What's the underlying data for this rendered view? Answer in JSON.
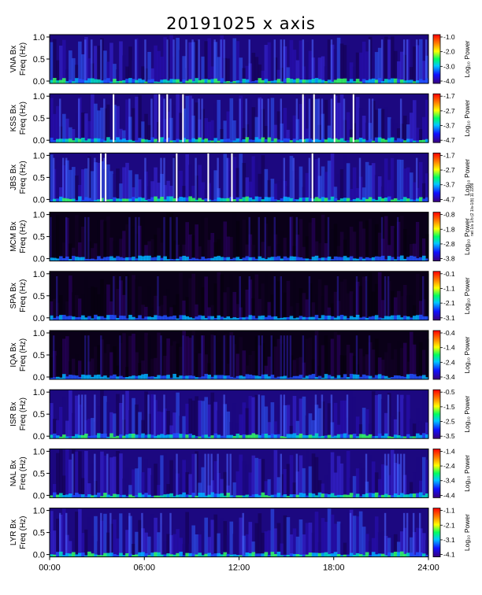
{
  "title": "20191025 x axis",
  "credit": "net 1/a 1/b (2 1/a-1/(t) 11 2209",
  "chart_data": {
    "type": "heatmap",
    "x_ticks": [
      "00:00",
      "06:00",
      "12:00",
      "18:00",
      "24:00"
    ],
    "x_range_hours": [
      0,
      24
    ],
    "freq_ticks": [
      "0.0",
      "0.5",
      "1.0"
    ],
    "freq_range": [
      0,
      1
    ],
    "colorbar_label": "Log₁₀ Power",
    "panels": [
      {
        "station": "VNA",
        "ylabel_top": "VNA Bx",
        "ylabel_bottom": "Freq (Hz)",
        "cbar_ticks": [
          "-1.0",
          "-2.0",
          "-3.0",
          "-4.0"
        ],
        "gaps_hours": []
      },
      {
        "station": "KSS",
        "ylabel_top": "KSS Bx",
        "ylabel_bottom": "Freq (Hz)",
        "cbar_ticks": [
          "-1.7",
          "-2.7",
          "-3.7",
          "-4.7"
        ],
        "gaps_hours": [
          4.0,
          6.9,
          7.4,
          8.4,
          16.0,
          16.7,
          18.0,
          19.2
        ]
      },
      {
        "station": "JBS",
        "ylabel_top": "JBS Bx",
        "ylabel_bottom": "Freq (Hz)",
        "cbar_ticks": [
          "-1.7",
          "-2.7",
          "-3.7",
          "-4.7"
        ],
        "gaps_hours": [
          3.2,
          3.5,
          8.0,
          10.0,
          11.5,
          16.6
        ]
      },
      {
        "station": "MCM",
        "ylabel_top": "MCM Bx",
        "ylabel_bottom": "Freq (Hz)",
        "cbar_ticks": [
          "-0.8",
          "-1.8",
          "-2.8",
          "-3.8"
        ],
        "gaps_hours": []
      },
      {
        "station": "SPA",
        "ylabel_top": "SPA Bx",
        "ylabel_bottom": "Freq (Hz)",
        "cbar_ticks": [
          "-0.1",
          "-1.1",
          "-2.1",
          "-3.1"
        ],
        "gaps_hours": []
      },
      {
        "station": "IQA",
        "ylabel_top": "IQA Bx",
        "ylabel_bottom": "Freq (Hz)",
        "cbar_ticks": [
          "-0.4",
          "-1.4",
          "-2.4",
          "-3.4"
        ],
        "gaps_hours": []
      },
      {
        "station": "ISR",
        "ylabel_top": "ISR Bx",
        "ylabel_bottom": "Freq (Hz)",
        "cbar_ticks": [
          "-0.5",
          "-1.5",
          "-2.5",
          "-3.5"
        ],
        "gaps_hours": []
      },
      {
        "station": "NAL",
        "ylabel_top": "NAL Bx",
        "ylabel_bottom": "Freq (Hz)",
        "cbar_ticks": [
          "-1.4",
          "-2.4",
          "-3.4",
          "-4.4"
        ],
        "gaps_hours": []
      },
      {
        "station": "LYR",
        "ylabel_top": "LYR Bx",
        "ylabel_bottom": "Freq (Hz)",
        "cbar_ticks": [
          "-1.1",
          "-2.1",
          "-3.1",
          "-4.1"
        ],
        "gaps_hours": []
      }
    ]
  }
}
